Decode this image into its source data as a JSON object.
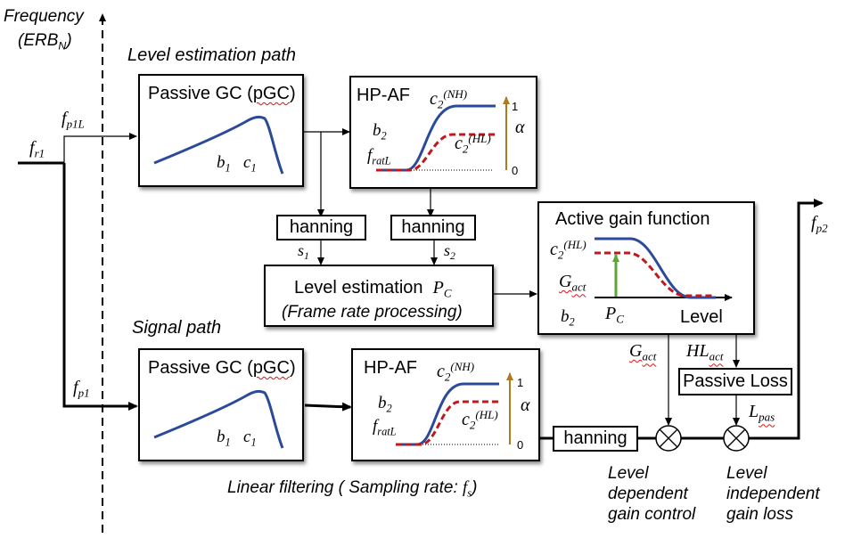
{
  "axis": {
    "frequency_label": "Frequency",
    "erb_label_main": "(ERB",
    "erb_label_sub": "N",
    "erb_label_close": ")"
  },
  "paths": {
    "level_estimation": "Level estimation path",
    "signal": "Signal path"
  },
  "signals": {
    "f_r1": {
      "main": "f",
      "sub": "r1"
    },
    "f_p1L": {
      "main": "f",
      "sub": "p1L"
    },
    "f_p1": {
      "main": "f",
      "sub": "p1"
    },
    "f_p2": {
      "main": "f",
      "sub": "p2"
    },
    "s1": {
      "main": "s",
      "sub": "1"
    },
    "s2": {
      "main": "s",
      "sub": "2"
    }
  },
  "pgc_box": {
    "title": "Passive GC (",
    "title_squig": "pGC",
    "title_close": ")",
    "b1": "b",
    "b1_sub": "1",
    "c1": "c",
    "c1_sub": "1"
  },
  "hpaf_box": {
    "title": "HP-AF",
    "c2": "c",
    "c2_sub": "2",
    "nh": "(NH)",
    "hl": "(HL)",
    "b2": "b",
    "b2_sub": "2",
    "fratl": "f",
    "fratl_sub": "ratL",
    "alpha": "α",
    "one": "1",
    "zero": "0"
  },
  "hanning": {
    "label": "hanning"
  },
  "level_est_box": {
    "line1": "Level estimation",
    "pc_main": "P",
    "pc_sub": "C",
    "line2": "(Frame rate processing)"
  },
  "agf_box": {
    "title": "Active gain function",
    "c2": "c",
    "c2_sub": "2",
    "hl": "(HL)",
    "gact_main": "G",
    "gact_sub": "act",
    "b2": "b",
    "b2_sub": "2",
    "pc_main": "P",
    "pc_sub": "C",
    "level": "Level"
  },
  "gain": {
    "gact_main": "G",
    "gact_sub": "act",
    "hlact_main": "HL",
    "hlact_sub": "act",
    "lpas_main": "L",
    "lpas_sub": "pas"
  },
  "passive_loss": {
    "label": "Passive Loss"
  },
  "captions": {
    "linear_filtering": "Linear filtering ( Sampling rate: ",
    "fs_main": "f",
    "fs_sub": "s",
    "fs_close": ")",
    "level_dependent": [
      "Level",
      "dependent",
      "gain control"
    ],
    "level_independent": [
      "Level",
      "independent",
      "gain loss"
    ]
  },
  "colors": {
    "nh_curve": "#2b4a9a",
    "hl_curve": "#c0181f",
    "alpha_arrow": "#b07a20",
    "pc_arrow": "#5aa832",
    "squiggle": "#e01010"
  }
}
